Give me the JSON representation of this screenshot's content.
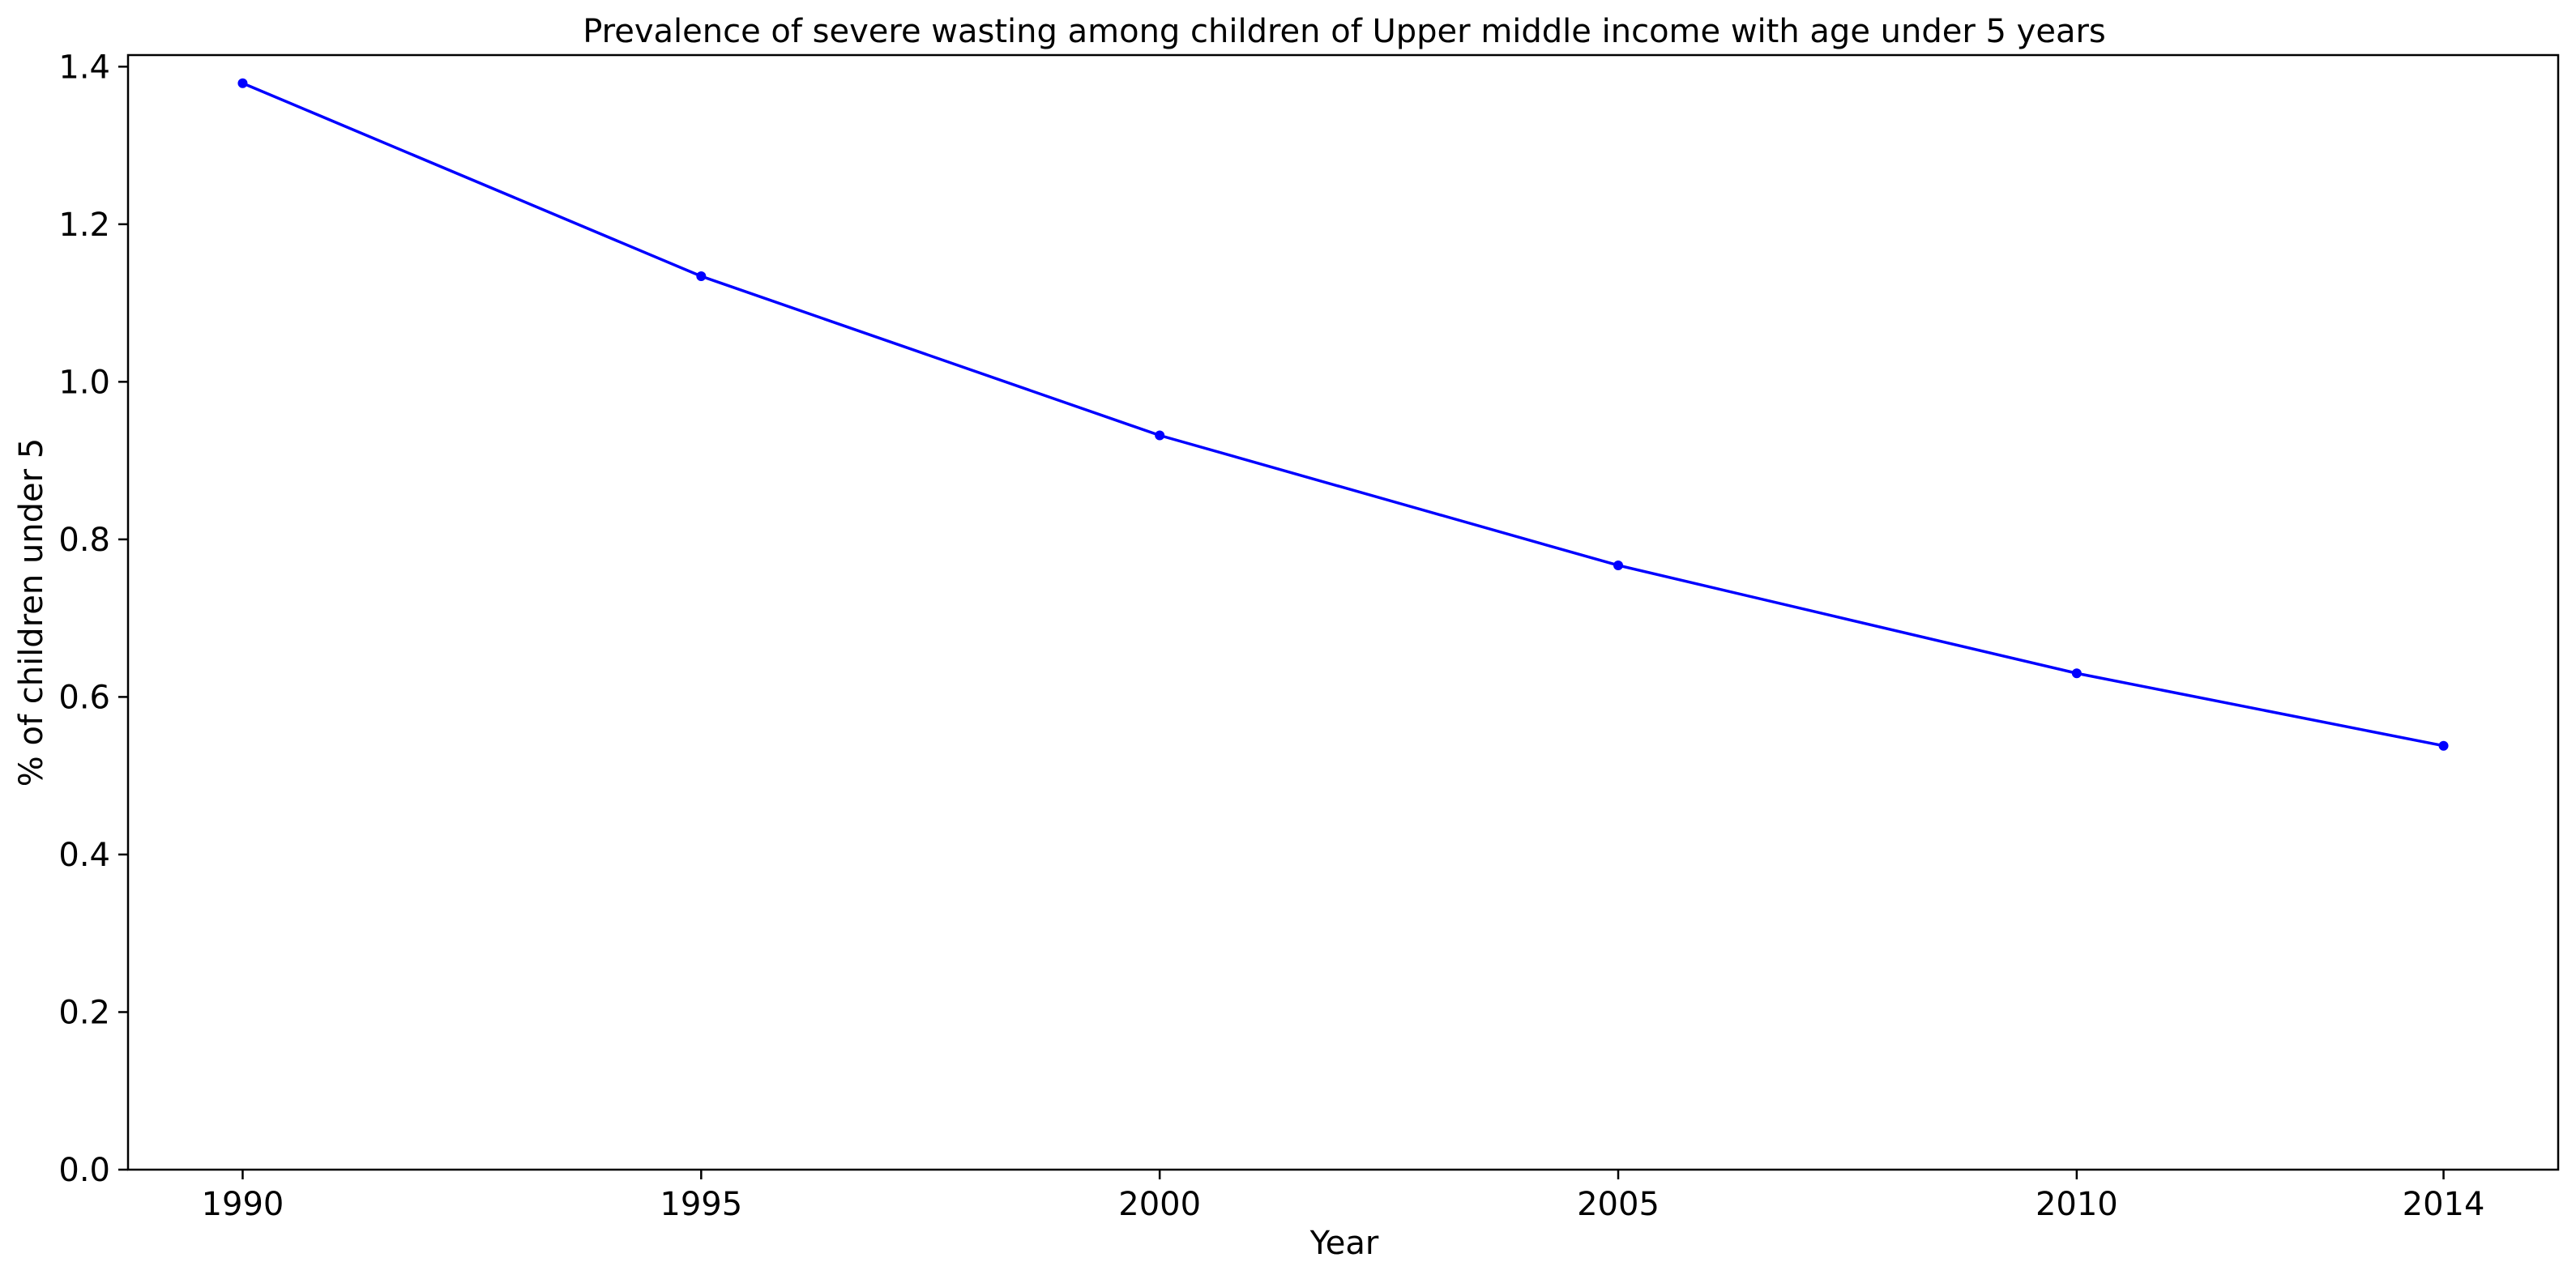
{
  "chart_data": {
    "type": "line",
    "title": "Prevalence of severe wasting among children of Upper middle income with age under 5 years",
    "xlabel": "Year",
    "ylabel": "% of children under 5",
    "x": [
      1990,
      1995,
      2000,
      2005,
      2010,
      2014
    ],
    "series": [
      {
        "values": [
          1.379,
          1.134,
          0.932,
          0.767,
          0.63,
          0.538
        ],
        "color": "#0000ff"
      }
    ],
    "xticks": [
      "1990",
      "1995",
      "2000",
      "2005",
      "2010",
      "2014"
    ],
    "yticks": [
      "0.0",
      "0.2",
      "0.4",
      "0.6",
      "0.8",
      "1.0",
      "1.2",
      "1.4"
    ],
    "xlim": [
      1988.75,
      2015.25
    ],
    "ylim": [
      0,
      1.4147
    ],
    "grid": false,
    "legend": "none"
  }
}
